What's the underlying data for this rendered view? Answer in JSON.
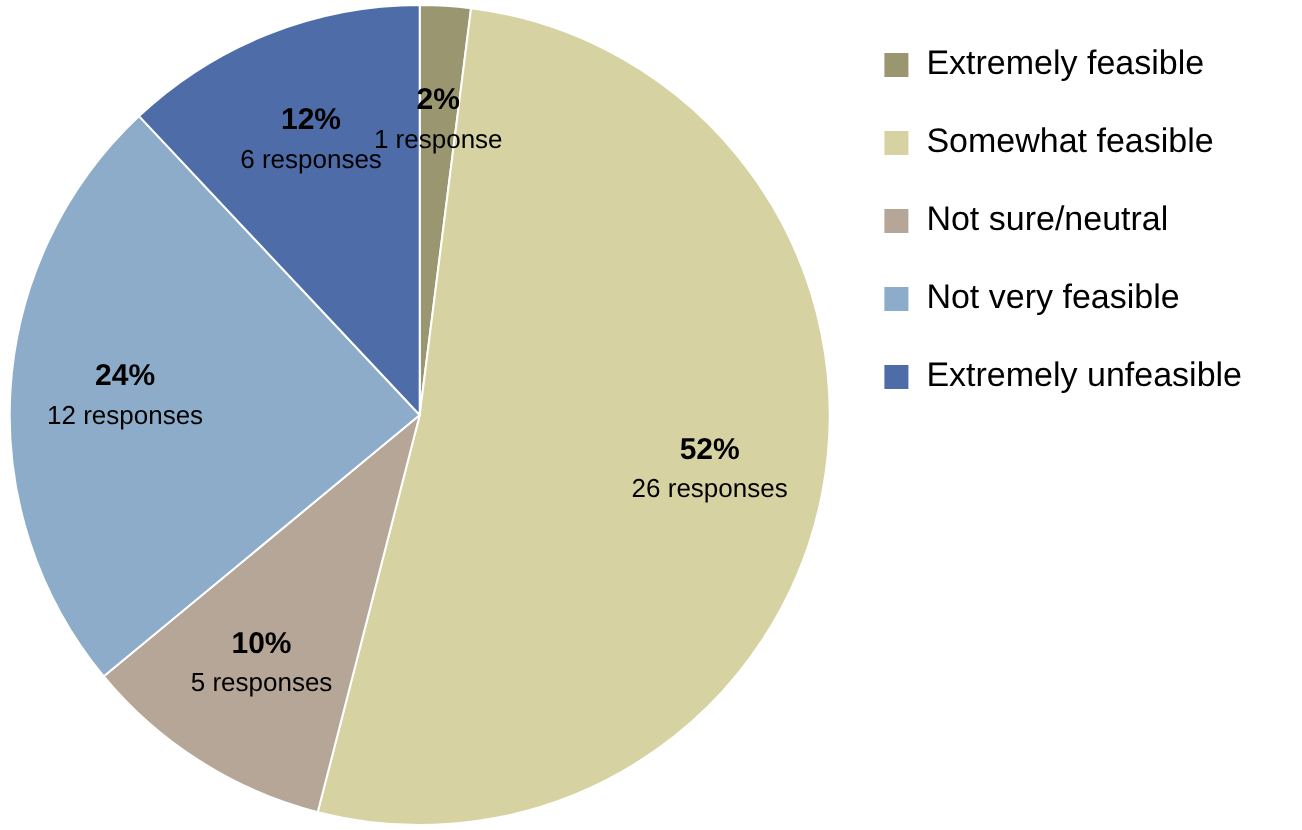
{
  "chart_data": {
    "type": "pie",
    "categories": [
      "Extremely feasible",
      "Somewhat feasible",
      "Not sure/neutral",
      "Not very feasible",
      "Extremely unfeasible"
    ],
    "values": [
      2,
      52,
      10,
      24,
      12
    ],
    "colors": [
      "#9a9670",
      "#d7d2a2",
      "#b6a697",
      "#8cacc9",
      "#4d6ca8"
    ],
    "value_labels": [
      "2%\n1 response",
      "52%\n26 responses",
      "10%\n5 responses",
      "24%\n12 responses",
      "12%\n6 responses"
    ],
    "legend": "right"
  }
}
